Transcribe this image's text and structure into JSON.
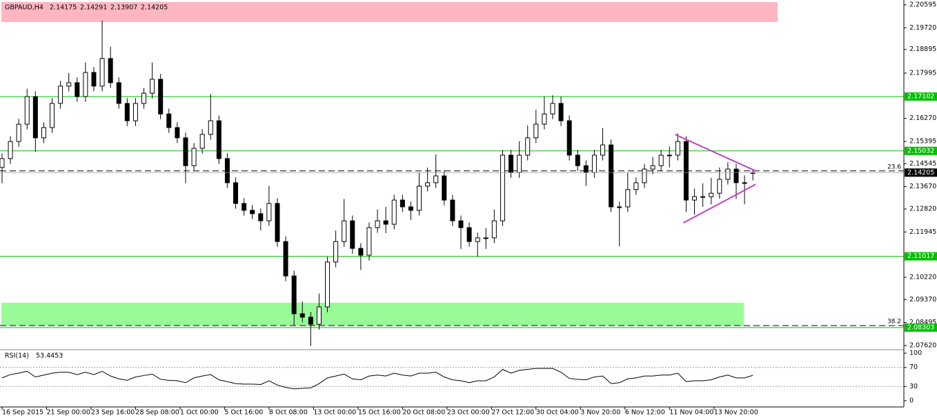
{
  "chart_data": {
    "type": "candlestick",
    "title": "GBPAUD,H4",
    "x": [
      0,
      3,
      6,
      9,
      12,
      15,
      18,
      21,
      24,
      27,
      30,
      33,
      36,
      39,
      42,
      45,
      48,
      51,
      54,
      57,
      60,
      63,
      66,
      69,
      72,
      75,
      78,
      81,
      84,
      87,
      90,
      93,
      96,
      99,
      102,
      105,
      108,
      111,
      114,
      117,
      120,
      123,
      126,
      129,
      132,
      135,
      138,
      141,
      144,
      147,
      150,
      153,
      156,
      159,
      162,
      165,
      168,
      171,
      174,
      177,
      180,
      183,
      186,
      189,
      192,
      195,
      198,
      201,
      204,
      207,
      210,
      213,
      216,
      219,
      222,
      225,
      228,
      231,
      234,
      237,
      240,
      243,
      246,
      249,
      252,
      255,
      258,
      261,
      264,
      267,
      270
    ],
    "candles": [
      [
        2.144,
        2.1494,
        2.138,
        2.1474
      ],
      [
        2.1474,
        2.1559,
        2.1454,
        2.1539
      ],
      [
        2.1539,
        2.1625,
        2.1519,
        2.1605
      ],
      [
        2.1605,
        2.174,
        2.1585,
        2.171
      ],
      [
        2.171,
        2.173,
        2.15,
        2.1553
      ],
      [
        2.1553,
        2.1612,
        2.1533,
        2.1592
      ],
      [
        2.1592,
        2.1704,
        2.1572,
        2.1684
      ],
      [
        2.1684,
        2.177,
        2.1664,
        2.175
      ],
      [
        2.175,
        2.18,
        2.173,
        2.1763
      ],
      [
        2.1763,
        2.1783,
        2.169,
        2.171
      ],
      [
        2.171,
        2.184,
        2.169,
        2.1802
      ],
      [
        2.1802,
        2.1822,
        2.173,
        2.175
      ],
      [
        2.175,
        2.2,
        2.173,
        2.1855
      ],
      [
        2.1855,
        2.19,
        2.1743,
        2.1763
      ],
      [
        2.1763,
        2.1783,
        2.1664,
        2.1684
      ],
      [
        2.1684,
        2.1704,
        2.1598,
        2.1618
      ],
      [
        2.1618,
        2.1704,
        2.1598,
        2.1684
      ],
      [
        2.1684,
        2.1743,
        2.1664,
        2.1723
      ],
      [
        2.1723,
        2.184,
        2.1703,
        2.1776
      ],
      [
        2.1776,
        2.1796,
        2.1624,
        2.1644
      ],
      [
        2.1644,
        2.1664,
        2.1572,
        2.1592
      ],
      [
        2.1592,
        2.1612,
        2.1533,
        2.1553
      ],
      [
        2.1553,
        2.1573,
        2.138,
        2.1447
      ],
      [
        2.1447,
        2.1533,
        2.1427,
        2.1513
      ],
      [
        2.1513,
        2.1586,
        2.1493,
        2.1566
      ],
      [
        2.1566,
        2.172,
        2.1546,
        2.1618
      ],
      [
        2.1618,
        2.1638,
        2.1454,
        2.1474
      ],
      [
        2.1474,
        2.1494,
        2.1362,
        2.1382
      ],
      [
        2.1382,
        2.1402,
        2.1283,
        2.1303
      ],
      [
        2.1303,
        2.1323,
        2.1257,
        2.1277
      ],
      [
        2.1277,
        2.1297,
        2.1244,
        2.1264
      ],
      [
        2.1264,
        2.1284,
        2.12,
        2.1237
      ],
      [
        2.1237,
        2.137,
        2.1217,
        2.1303
      ],
      [
        2.1303,
        2.1323,
        2.1138,
        2.1158
      ],
      [
        2.1158,
        2.1178,
        2.1007,
        2.1027
      ],
      [
        2.1027,
        2.1047,
        2.084,
        2.0883
      ],
      [
        2.0883,
        2.093,
        2.085,
        2.087
      ],
      [
        2.087,
        2.089,
        2.076,
        2.0843
      ],
      [
        2.0843,
        2.096,
        2.0823,
        2.0909
      ],
      [
        2.0909,
        2.11,
        2.0889,
        2.108
      ],
      [
        2.108,
        2.12,
        2.106,
        2.1158
      ],
      [
        2.1158,
        2.132,
        2.1138,
        2.1237
      ],
      [
        2.1237,
        2.1257,
        2.1112,
        2.1132
      ],
      [
        2.1132,
        2.1152,
        2.105,
        2.1106
      ],
      [
        2.1106,
        2.1231,
        2.1086,
        2.1211
      ],
      [
        2.1211,
        2.128,
        2.1191,
        2.1237
      ],
      [
        2.1237,
        2.129,
        2.119,
        2.1224
      ],
      [
        2.1224,
        2.1336,
        2.1204,
        2.1316
      ],
      [
        2.1316,
        2.1336,
        2.127,
        2.129
      ],
      [
        2.129,
        2.131,
        2.124,
        2.1277
      ],
      [
        2.1277,
        2.142,
        2.1257,
        2.1369
      ],
      [
        2.1369,
        2.144,
        2.1349,
        2.1382
      ],
      [
        2.1382,
        2.149,
        2.1362,
        2.1408
      ],
      [
        2.1408,
        2.1428,
        2.1296,
        2.1316
      ],
      [
        2.1316,
        2.1336,
        2.1217,
        2.1237
      ],
      [
        2.1237,
        2.1257,
        2.113,
        2.1211
      ],
      [
        2.1211,
        2.1231,
        2.1138,
        2.1158
      ],
      [
        2.1158,
        2.1192,
        2.11,
        2.1172
      ],
      [
        2.1172,
        2.121,
        2.113,
        2.1172
      ],
      [
        2.1172,
        2.128,
        2.1152,
        2.1237
      ],
      [
        2.1237,
        2.1507,
        2.1217,
        2.1487
      ],
      [
        2.1487,
        2.1507,
        2.1401,
        2.1421
      ],
      [
        2.1421,
        2.154,
        2.1401,
        2.1487
      ],
      [
        2.1487,
        2.16,
        2.1467,
        2.1553
      ],
      [
        2.1553,
        2.166,
        2.1533,
        2.1605
      ],
      [
        2.1605,
        2.171,
        2.1585,
        2.1644
      ],
      [
        2.1644,
        2.1715,
        2.1624,
        2.1684
      ],
      [
        2.1684,
        2.171,
        2.1598,
        2.1618
      ],
      [
        2.1618,
        2.1638,
        2.1467,
        2.1487
      ],
      [
        2.1487,
        2.1507,
        2.1427,
        2.1447
      ],
      [
        2.1447,
        2.1467,
        2.137,
        2.1421
      ],
      [
        2.1421,
        2.1507,
        2.1401,
        2.1487
      ],
      [
        2.1487,
        2.159,
        2.1467,
        2.1526
      ],
      [
        2.1526,
        2.1546,
        2.127,
        2.129
      ],
      [
        2.129,
        2.131,
        2.114,
        2.129
      ],
      [
        2.129,
        2.142,
        2.127,
        2.1356
      ],
      [
        2.1356,
        2.1402,
        2.1336,
        2.1382
      ],
      [
        2.1382,
        2.1454,
        2.1362,
        2.1434
      ],
      [
        2.1434,
        2.148,
        2.1414,
        2.1447
      ],
      [
        2.1447,
        2.1507,
        2.1427,
        2.1487
      ],
      [
        2.1487,
        2.152,
        2.144,
        2.1487
      ],
      [
        2.1487,
        2.157,
        2.1467,
        2.1539
      ],
      [
        2.1539,
        2.1559,
        2.127,
        2.1316
      ],
      [
        2.1316,
        2.136,
        2.126,
        2.1329
      ],
      [
        2.1329,
        2.138,
        2.129,
        2.1329
      ],
      [
        2.1329,
        2.14,
        2.13,
        2.1342
      ],
      [
        2.1342,
        2.144,
        2.1322,
        2.1395
      ],
      [
        2.1395,
        2.146,
        2.1375,
        2.1434
      ],
      [
        2.1434,
        2.1454,
        2.132,
        2.1382
      ],
      [
        2.1382,
        2.141,
        2.13,
        2.1382
      ],
      [
        2.14175,
        2.14291,
        2.13907,
        2.14205
      ]
    ],
    "bull_color": "#ffffff",
    "bear_color": "#000000",
    "xlim": [
      -0.74,
      324.3
    ],
    "ylim": [
      2.07487,
      2.20779
    ],
    "xticks": [
      {
        "value": 0,
        "label": "16 Sep 2015"
      },
      {
        "value": 16,
        "label": "21 Sep 00:00"
      },
      {
        "value": 32,
        "label": "23 Sep 16:00"
      },
      {
        "value": 48,
        "label": "28 Sep 08:00"
      },
      {
        "value": 64,
        "label": "1 Oct 00:00"
      },
      {
        "value": 80,
        "label": "5 Oct 16:00"
      },
      {
        "value": 96,
        "label": "8 Oct 08:00"
      },
      {
        "value": 112,
        "label": "13 Oct 00:00"
      },
      {
        "value": 128,
        "label": "15 Oct 16:00"
      },
      {
        "value": 144,
        "label": "20 Oct 08:00"
      },
      {
        "value": 160,
        "label": "23 Oct 00:00"
      },
      {
        "value": 176,
        "label": "27 Oct 12:00"
      },
      {
        "value": 192,
        "label": "30 Oct 04:00"
      },
      {
        "value": 208,
        "label": "3 Nov 20:00"
      },
      {
        "value": 224,
        "label": "6 Nov 12:00"
      },
      {
        "value": 240,
        "label": "11 Nov 04:00"
      },
      {
        "value": 256,
        "label": "13 Nov 20:00"
      }
    ],
    "yticks": [
      2.20595,
      {
        "value": 2.1972,
        "label": "2.19720"
      },
      2.18895,
      2.17995,
      {
        "value": 2.1627,
        "label": "2.16270"
      },
      2.15395,
      2.14545,
      {
        "value": 2.1367,
        "label": "2.13670"
      },
      {
        "value": 2.1282,
        "label": "2.12820"
      },
      2.11945,
      {
        "value": 2.1022,
        "label": "2.10220"
      },
      {
        "value": 2.0937,
        "label": "2.09370"
      },
      2.08495,
      {
        "value": 2.0762,
        "label": "2.07620"
      }
    ],
    "levels": [
      {
        "value": 2.17102,
        "color": "#00c000"
      },
      {
        "value": 2.15032,
        "color": "#00c000"
      },
      {
        "value": 2.11017,
        "color": "#00c000"
      },
      {
        "value": 2.08303,
        "color": "#00c000"
      }
    ],
    "fib_levels": [
      {
        "label": "23.6",
        "value": 2.1427
      },
      {
        "label": "38.2",
        "value": 2.0838
      }
    ],
    "zones": [
      {
        "color": "#ffb6c1",
        "ymin": 2.1994,
        "ymax": 2.207
      },
      {
        "color": "#98fb98",
        "ymin": 2.0837,
        "ymax": 2.0925
      }
    ],
    "trendlines": [
      {
        "x": [
          242,
          271
        ],
        "y": [
          2.1566,
          2.1427
        ]
      },
      {
        "x": [
          245,
          271
        ],
        "y": [
          2.1229,
          2.1376
        ]
      }
    ],
    "trendline_color": "#c040c0",
    "indicator": {
      "type": "line",
      "name": "RSI(14)",
      "color": "#000000",
      "ylim": [
        -13.2,
        107.4
      ],
      "yticks": [
        100,
        70,
        30,
        0
      ],
      "levels": [
        70,
        30
      ],
      "values": [
        48,
        55,
        58,
        62,
        50,
        54,
        58,
        60,
        60,
        55,
        60,
        55,
        62,
        52,
        46,
        43,
        50,
        53,
        56,
        45,
        43,
        42,
        38,
        48,
        52,
        55,
        44,
        40,
        36,
        35,
        35,
        34,
        42,
        33,
        28,
        25,
        26,
        27,
        36,
        48,
        52,
        56,
        46,
        44,
        52,
        54,
        52,
        58,
        54,
        52,
        58,
        58,
        60,
        50,
        44,
        42,
        38,
        42,
        42,
        50,
        66,
        58,
        64,
        66,
        68,
        68,
        68,
        60,
        47,
        45,
        44,
        50,
        52,
        36,
        38,
        46,
        48,
        52,
        52,
        54,
        54,
        58,
        40,
        42,
        42,
        44,
        50,
        54,
        48,
        48,
        53.4453
      ]
    }
  }
}
